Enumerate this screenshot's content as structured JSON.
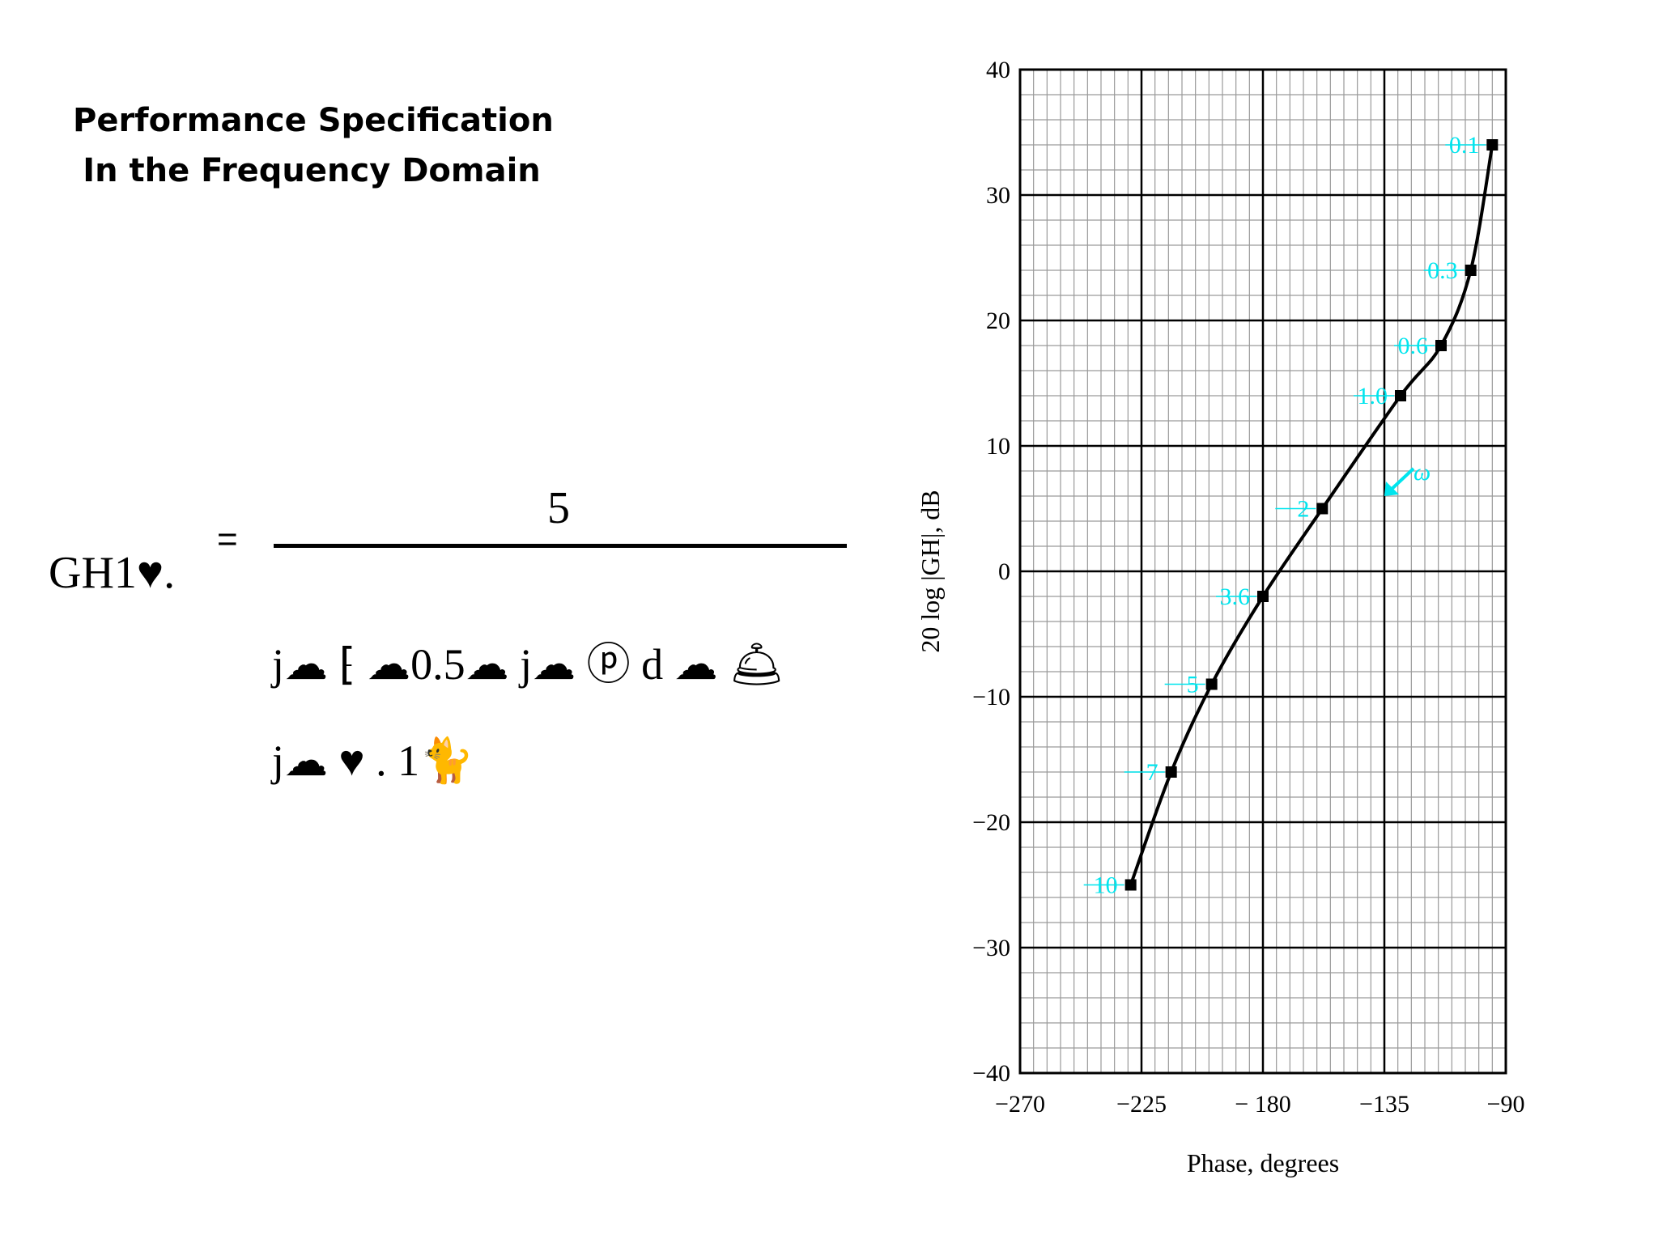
{
  "slide": {
    "title_line1": "Performance Specification",
    "title_line2": "In the Frequency Domain"
  },
  "equation": {
    "lhs": "GH1♥.",
    "equals": "=",
    "numerator": "5",
    "denominator_line1": "j☁ ⁅ ☁0.5☁ j☁ ⓟ d ☁ 🛎",
    "denominator_line2": "j☁ ♥ . 1🐈"
  },
  "chart_data": {
    "type": "line",
    "title": "",
    "xlabel": "Phase, degrees",
    "ylabel": "20 log |GH|, dB",
    "xlim": [
      -270,
      -90
    ],
    "ylim": [
      -40,
      40
    ],
    "x_ticks": [
      -270,
      -225,
      -180,
      -135,
      -90
    ],
    "y_ticks": [
      40,
      30,
      20,
      10,
      0,
      -10,
      -20,
      -30,
      -40
    ],
    "x_tick_labels": [
      "−270",
      "−225",
      "− 180",
      "−135",
      "−90"
    ],
    "y_tick_labels": [
      "40",
      "30",
      "20",
      "10",
      "0",
      "−10",
      "−20",
      "−30",
      "−40"
    ],
    "grid": true,
    "series": [
      {
        "line_color": "#000000",
        "label_color": "#00e5ee",
        "points": [
          {
            "label": "0.1",
            "x": -95,
            "y": 34
          },
          {
            "label": "0.3",
            "x": -103,
            "y": 24
          },
          {
            "label": "0.6",
            "x": -114,
            "y": 18
          },
          {
            "label": "1.0",
            "x": -129,
            "y": 14
          },
          {
            "label": "2",
            "x": -158,
            "y": 5
          },
          {
            "label": "3.6",
            "x": -180,
            "y": -2
          },
          {
            "label": "5",
            "x": -199,
            "y": -9
          },
          {
            "label": "7",
            "x": -214,
            "y": -16
          },
          {
            "label": "10",
            "x": -229,
            "y": -25
          }
        ]
      }
    ],
    "annotations": [
      {
        "text": "ω",
        "x": -135,
        "y": 6,
        "color": "#00e5ee"
      }
    ]
  }
}
